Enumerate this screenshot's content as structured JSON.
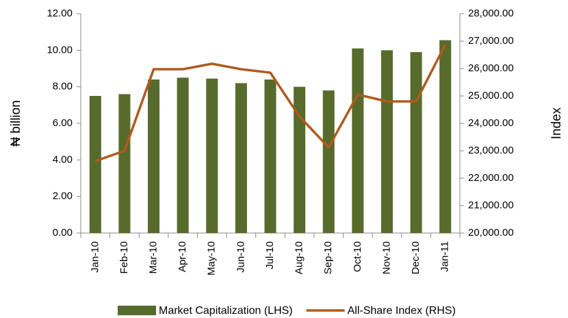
{
  "chart_data": {
    "type": "bar-line",
    "y_label": "₦ billion",
    "y2_label": "Index",
    "categories": [
      "Jan-10",
      "Feb-10",
      "Mar-10",
      "Apr-10",
      "May-10",
      "Jun-10",
      "Jul-10",
      "Aug-10",
      "Sep-10",
      "Oct-10",
      "Nov-10",
      "Dec-10",
      "Jan-11"
    ],
    "series": [
      {
        "name": "Market Capitalization (LHS)",
        "type": "bar",
        "color": "#576b2c",
        "axis": "y",
        "values": [
          7.5,
          7.6,
          8.4,
          8.5,
          8.45,
          8.2,
          8.4,
          8.0,
          7.8,
          10.1,
          10.0,
          9.9,
          10.55
        ]
      },
      {
        "name": "All-Share Index (RHS)",
        "type": "line",
        "color": "#b05a1e",
        "axis": "y2",
        "values": [
          22625,
          23000,
          25975,
          25975,
          26175,
          25975,
          25850,
          24250,
          23125,
          25050,
          24800,
          24800,
          26875
        ]
      }
    ],
    "ylim": [
      0,
      12
    ],
    "yticks": [
      {
        "value": 0,
        "label": "0.00"
      },
      {
        "value": 2,
        "label": "2.00"
      },
      {
        "value": 4,
        "label": "4.00"
      },
      {
        "value": 6,
        "label": "6.00"
      },
      {
        "value": 8,
        "label": "8.00"
      },
      {
        "value": 10,
        "label": "10.00"
      },
      {
        "value": 12,
        "label": "12.00"
      }
    ],
    "y2lim": [
      20000,
      28000
    ],
    "y2ticks": [
      {
        "value": 20000,
        "label": "20,000.00"
      },
      {
        "value": 21000,
        "label": "21,000.00"
      },
      {
        "value": 22000,
        "label": "22,000.00"
      },
      {
        "value": 23000,
        "label": "23,000.00"
      },
      {
        "value": 24000,
        "label": "24,000.00"
      },
      {
        "value": 25000,
        "label": "25,000.00"
      },
      {
        "value": 26000,
        "label": "26,000.00"
      },
      {
        "value": 27000,
        "label": "27,000.00"
      },
      {
        "value": 28000,
        "label": "28,000.00"
      }
    ],
    "grid": false,
    "legend": "bottom"
  }
}
